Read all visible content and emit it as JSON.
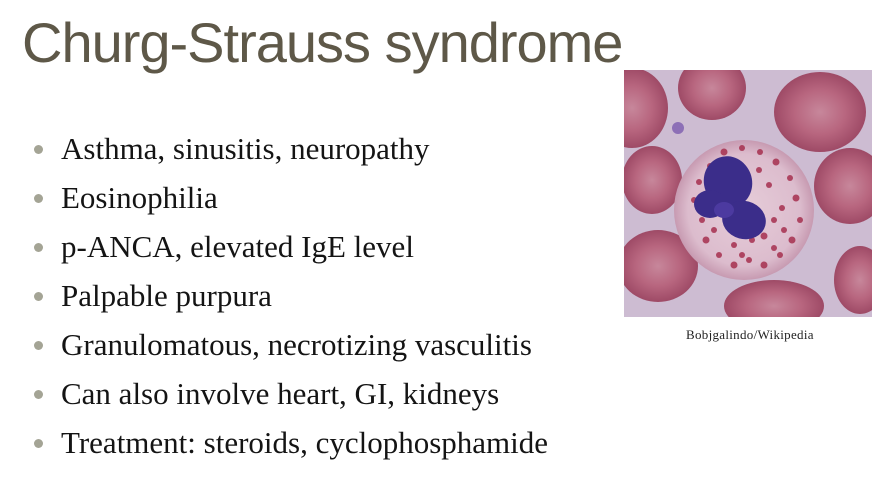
{
  "slide": {
    "title": "Churg-Strauss syndrome",
    "bullets": [
      "Asthma, sinusitis, neuropathy",
      "Eosinophilia",
      "p-ANCA, elevated IgE level",
      "Palpable purpura",
      "Granulomatous, necrotizing vasculitis",
      "Can also involve heart, GI, kidneys",
      "Treatment: steroids, cyclophosphamide"
    ],
    "image_caption": "Bobjgalindo/Wikipedia"
  },
  "colors": {
    "title": "#5e5848",
    "bullet_marker": "#a4a495",
    "body_text": "#141414",
    "photo_background": "#cdbcd2",
    "red_blood_cell": "#b35a75",
    "nucleus": "#3b2d8a",
    "granules": "#a6304f"
  }
}
